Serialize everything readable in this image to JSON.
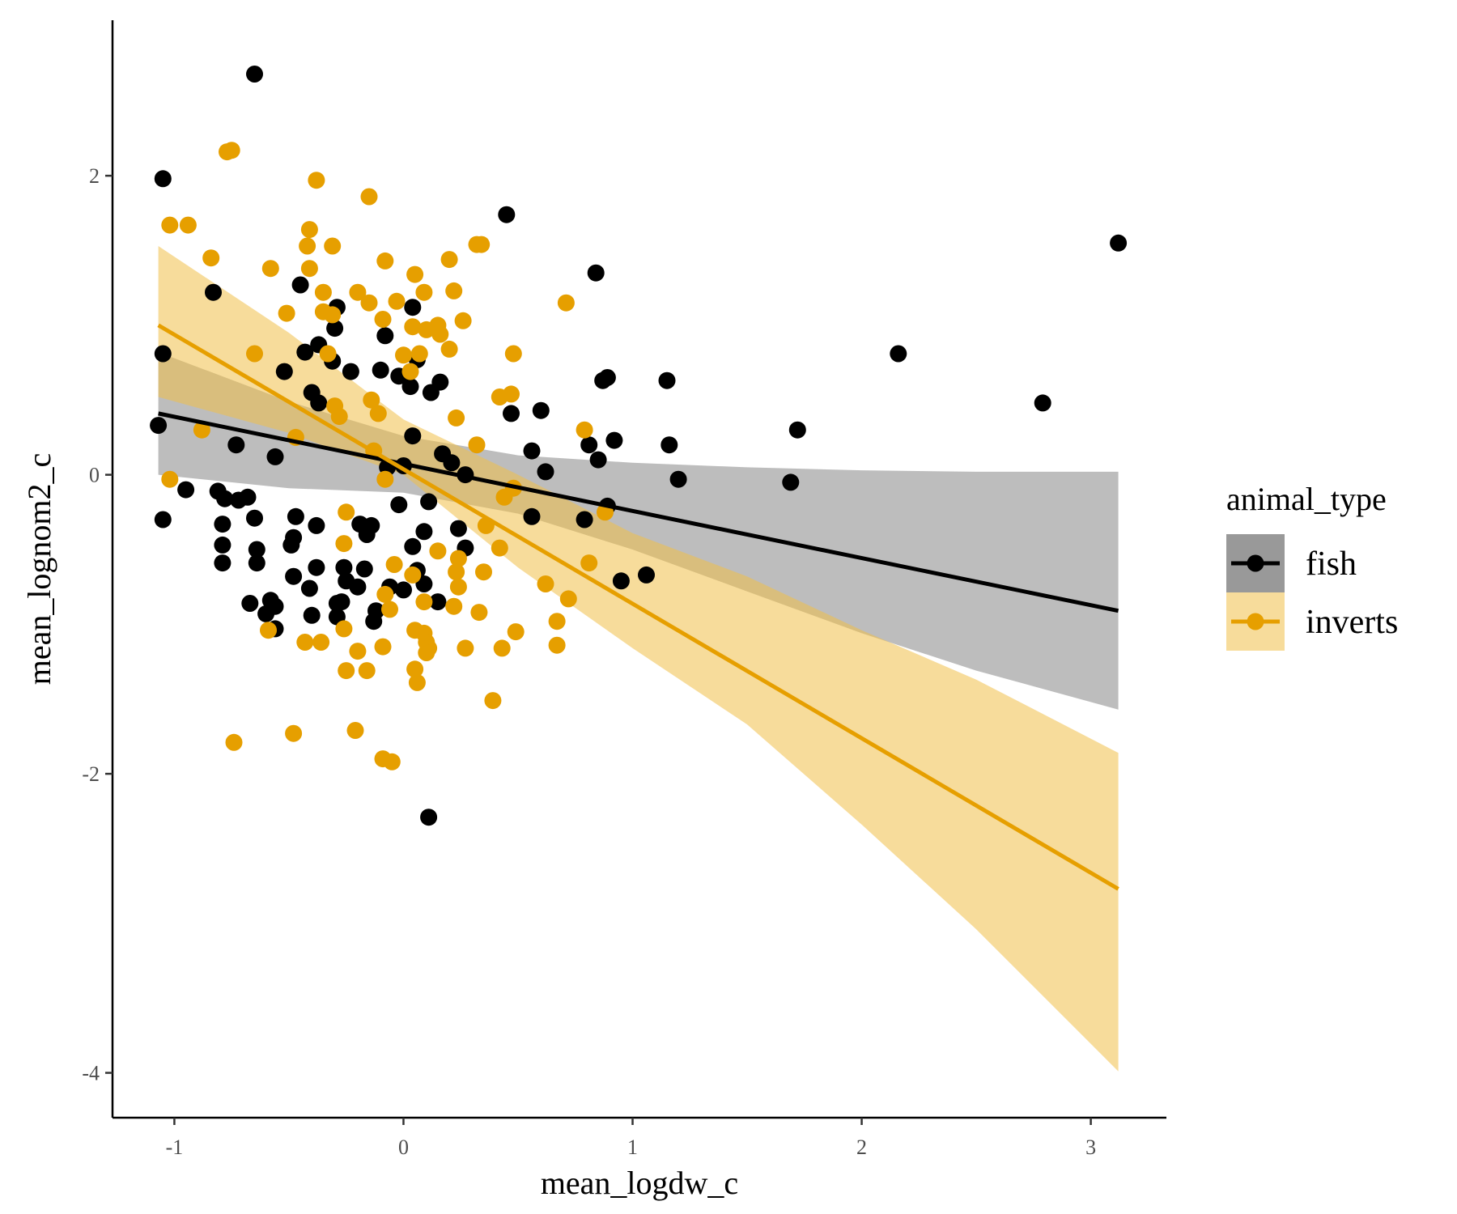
{
  "chart_data": {
    "type": "scatter",
    "title": "",
    "xlabel": "mean_logdw_c",
    "ylabel": "mean_lognom2_c",
    "xlim": [
      -1.27,
      3.33
    ],
    "ylim": [
      -4.3,
      3.04
    ],
    "x_ticks": [
      -1,
      0,
      1,
      2,
      3
    ],
    "y_ticks": [
      -4,
      -2,
      0,
      2
    ],
    "x_tick_labels": [
      "-1",
      "0",
      "1",
      "2",
      "3"
    ],
    "y_tick_labels": [
      "-4",
      "-2",
      "0",
      "2"
    ],
    "grid": false,
    "legend": {
      "title": "animal_type",
      "position": "right"
    },
    "series": [
      {
        "name": "fish",
        "color": "#000000",
        "band_color": "#999999",
        "fit": {
          "x": [
            -1.07,
            3.12
          ],
          "y": [
            0.41,
            -0.91
          ]
        },
        "band": {
          "x": [
            -1.07,
            -0.5,
            0.0,
            0.5,
            1.0,
            1.5,
            2.0,
            2.5,
            3.12
          ],
          "lower": [
            0.0,
            -0.09,
            -0.12,
            -0.26,
            -0.5,
            -0.78,
            -1.06,
            -1.31,
            -1.57
          ],
          "upper": [
            0.82,
            0.49,
            0.26,
            0.13,
            0.08,
            0.05,
            0.03,
            0.02,
            0.02
          ]
        },
        "points": [
          [
            -0.65,
            2.68
          ],
          [
            -1.05,
            1.98
          ],
          [
            0.45,
            1.74
          ],
          [
            3.12,
            1.55
          ],
          [
            0.84,
            1.35
          ],
          [
            -0.45,
            1.27
          ],
          [
            -0.83,
            1.22
          ],
          [
            -0.29,
            1.12
          ],
          [
            0.04,
            1.12
          ],
          [
            -0.3,
            0.98
          ],
          [
            -0.08,
            0.93
          ],
          [
            -1.05,
            0.81
          ],
          [
            -0.37,
            0.87
          ],
          [
            2.16,
            0.81
          ],
          [
            -0.43,
            0.82
          ],
          [
            0.06,
            0.77
          ],
          [
            -0.31,
            0.76
          ],
          [
            -0.23,
            0.69
          ],
          [
            -0.1,
            0.7
          ],
          [
            -0.52,
            0.69
          ],
          [
            -0.02,
            0.66
          ],
          [
            0.89,
            0.65
          ],
          [
            1.15,
            0.63
          ],
          [
            0.16,
            0.62
          ],
          [
            0.03,
            0.59
          ],
          [
            -0.4,
            0.55
          ],
          [
            0.12,
            0.55
          ],
          [
            0.87,
            0.63
          ],
          [
            -0.37,
            0.48
          ],
          [
            2.79,
            0.48
          ],
          [
            0.47,
            0.41
          ],
          [
            0.6,
            0.43
          ],
          [
            -1.07,
            0.33
          ],
          [
            1.72,
            0.3
          ],
          [
            0.04,
            0.26
          ],
          [
            0.92,
            0.23
          ],
          [
            0.81,
            0.2
          ],
          [
            1.16,
            0.2
          ],
          [
            0.56,
            0.16
          ],
          [
            0.17,
            0.14
          ],
          [
            -0.73,
            0.2
          ],
          [
            -0.56,
            0.12
          ],
          [
            0.21,
            0.08
          ],
          [
            0.85,
            0.1
          ],
          [
            0.0,
            0.06
          ],
          [
            0.62,
            0.02
          ],
          [
            0.27,
            0.0
          ],
          [
            -0.07,
            0.05
          ],
          [
            1.2,
            -0.03
          ],
          [
            1.69,
            -0.05
          ],
          [
            -0.95,
            -0.1
          ],
          [
            -0.81,
            -0.11
          ],
          [
            -0.78,
            -0.16
          ],
          [
            -0.68,
            -0.15
          ],
          [
            -0.72,
            -0.17
          ],
          [
            0.11,
            -0.18
          ],
          [
            -0.02,
            -0.2
          ],
          [
            0.89,
            -0.21
          ],
          [
            -0.47,
            -0.28
          ],
          [
            -0.65,
            -0.29
          ],
          [
            -1.05,
            -0.3
          ],
          [
            0.56,
            -0.28
          ],
          [
            0.79,
            -0.3
          ],
          [
            -0.79,
            -0.33
          ],
          [
            -0.38,
            -0.34
          ],
          [
            -0.19,
            -0.33
          ],
          [
            -0.14,
            -0.34
          ],
          [
            0.24,
            -0.36
          ],
          [
            -0.16,
            -0.4
          ],
          [
            0.09,
            -0.38
          ],
          [
            -0.48,
            -0.42
          ],
          [
            -0.79,
            -0.47
          ],
          [
            0.04,
            -0.48
          ],
          [
            0.27,
            -0.49
          ],
          [
            -0.64,
            -0.5
          ],
          [
            -0.49,
            -0.47
          ],
          [
            -0.79,
            -0.59
          ],
          [
            -0.64,
            -0.59
          ],
          [
            -0.38,
            -0.62
          ],
          [
            -0.26,
            -0.62
          ],
          [
            -0.17,
            -0.63
          ],
          [
            0.06,
            -0.64
          ],
          [
            -0.48,
            -0.68
          ],
          [
            0.95,
            -0.71
          ],
          [
            1.06,
            -0.67
          ],
          [
            -0.25,
            -0.71
          ],
          [
            0.09,
            -0.73
          ],
          [
            -0.2,
            -0.75
          ],
          [
            -0.41,
            -0.76
          ],
          [
            -0.06,
            -0.75
          ],
          [
            0.0,
            -0.77
          ],
          [
            0.15,
            -0.85
          ],
          [
            -0.67,
            -0.86
          ],
          [
            -0.58,
            -0.84
          ],
          [
            -0.29,
            -0.86
          ],
          [
            -0.56,
            -0.88
          ],
          [
            -0.27,
            -0.85
          ],
          [
            -0.12,
            -0.91
          ],
          [
            -0.6,
            -0.93
          ],
          [
            -0.4,
            -0.94
          ],
          [
            -0.29,
            -0.95
          ],
          [
            -0.13,
            -0.98
          ],
          [
            -0.56,
            -1.03
          ],
          [
            0.11,
            -2.29
          ]
        ]
      },
      {
        "name": "inverts",
        "color": "#e69f00",
        "band_color": "#f0c048",
        "fit": {
          "x": [
            -1.07,
            3.12
          ],
          "y": [
            1.0,
            -2.77
          ]
        },
        "band": {
          "x": [
            -1.07,
            -0.5,
            0.0,
            0.5,
            1.0,
            1.5,
            2.0,
            2.5,
            3.12
          ],
          "lower": [
            0.52,
            0.28,
            0.0,
            -0.62,
            -1.16,
            -1.67,
            -2.34,
            -3.04,
            -3.99
          ],
          "upper": [
            1.53,
            0.95,
            0.37,
            0.0,
            -0.39,
            -0.68,
            -1.04,
            -1.37,
            -1.86
          ]
        },
        "points": [
          [
            -0.77,
            2.16
          ],
          [
            -0.75,
            2.17
          ],
          [
            -0.38,
            1.97
          ],
          [
            -0.15,
            1.86
          ],
          [
            -1.02,
            1.67
          ],
          [
            -0.94,
            1.67
          ],
          [
            -0.41,
            1.64
          ],
          [
            -0.31,
            1.53
          ],
          [
            -0.42,
            1.53
          ],
          [
            0.32,
            1.54
          ],
          [
            0.34,
            1.54
          ],
          [
            -0.84,
            1.45
          ],
          [
            -0.08,
            1.43
          ],
          [
            0.2,
            1.44
          ],
          [
            -0.58,
            1.38
          ],
          [
            -0.41,
            1.38
          ],
          [
            0.05,
            1.34
          ],
          [
            -0.35,
            1.22
          ],
          [
            -0.2,
            1.22
          ],
          [
            0.09,
            1.22
          ],
          [
            0.22,
            1.23
          ],
          [
            -0.35,
            1.09
          ],
          [
            -0.15,
            1.15
          ],
          [
            -0.03,
            1.16
          ],
          [
            0.71,
            1.15
          ],
          [
            -0.51,
            1.08
          ],
          [
            -0.31,
            1.07
          ],
          [
            -0.09,
            1.04
          ],
          [
            0.15,
            1.0
          ],
          [
            0.26,
            1.03
          ],
          [
            0.1,
            0.97
          ],
          [
            0.04,
            0.99
          ],
          [
            0.16,
            0.94
          ],
          [
            0.2,
            0.84
          ],
          [
            -0.65,
            0.81
          ],
          [
            0.07,
            0.81
          ],
          [
            0.48,
            0.81
          ],
          [
            -0.33,
            0.81
          ],
          [
            0.0,
            0.8
          ],
          [
            -0.14,
            0.5
          ],
          [
            -0.3,
            0.46
          ],
          [
            0.42,
            0.52
          ],
          [
            0.47,
            0.54
          ],
          [
            0.03,
            0.69
          ],
          [
            -0.28,
            0.39
          ],
          [
            0.23,
            0.38
          ],
          [
            -0.11,
            0.41
          ],
          [
            0.79,
            0.3
          ],
          [
            -0.88,
            0.3
          ],
          [
            -0.47,
            0.25
          ],
          [
            0.32,
            0.2
          ],
          [
            -0.13,
            0.16
          ],
          [
            -1.02,
            -0.03
          ],
          [
            -0.08,
            -0.03
          ],
          [
            0.48,
            -0.09
          ],
          [
            0.44,
            -0.15
          ],
          [
            0.88,
            -0.25
          ],
          [
            -0.25,
            -0.25
          ],
          [
            0.36,
            -0.34
          ],
          [
            -0.26,
            -0.46
          ],
          [
            0.42,
            -0.49
          ],
          [
            0.15,
            -0.51
          ],
          [
            0.24,
            -0.56
          ],
          [
            -0.04,
            -0.6
          ],
          [
            0.81,
            -0.59
          ],
          [
            0.23,
            -0.65
          ],
          [
            0.35,
            -0.65
          ],
          [
            0.04,
            -0.67
          ],
          [
            0.62,
            -0.73
          ],
          [
            0.24,
            -0.75
          ],
          [
            -0.08,
            -0.8
          ],
          [
            0.72,
            -0.83
          ],
          [
            0.09,
            -0.85
          ],
          [
            0.22,
            -0.88
          ],
          [
            0.33,
            -0.92
          ],
          [
            -0.06,
            -0.9
          ],
          [
            0.67,
            -0.98
          ],
          [
            -0.26,
            -1.03
          ],
          [
            0.05,
            -1.04
          ],
          [
            -0.59,
            -1.04
          ],
          [
            0.09,
            -1.06
          ],
          [
            0.49,
            -1.05
          ],
          [
            0.1,
            -1.12
          ],
          [
            -0.43,
            -1.12
          ],
          [
            -0.36,
            -1.12
          ],
          [
            0.11,
            -1.16
          ],
          [
            0.27,
            -1.16
          ],
          [
            0.43,
            -1.16
          ],
          [
            0.67,
            -1.14
          ],
          [
            -0.2,
            -1.18
          ],
          [
            -0.09,
            -1.15
          ],
          [
            0.1,
            -1.19
          ],
          [
            0.05,
            -1.3
          ],
          [
            -0.25,
            -1.31
          ],
          [
            -0.16,
            -1.31
          ],
          [
            0.06,
            -1.39
          ],
          [
            0.39,
            -1.51
          ],
          [
            -0.48,
            -1.73
          ],
          [
            -0.74,
            -1.79
          ],
          [
            -0.21,
            -1.71
          ],
          [
            -0.09,
            -1.9
          ],
          [
            -0.05,
            -1.92
          ]
        ]
      }
    ]
  }
}
